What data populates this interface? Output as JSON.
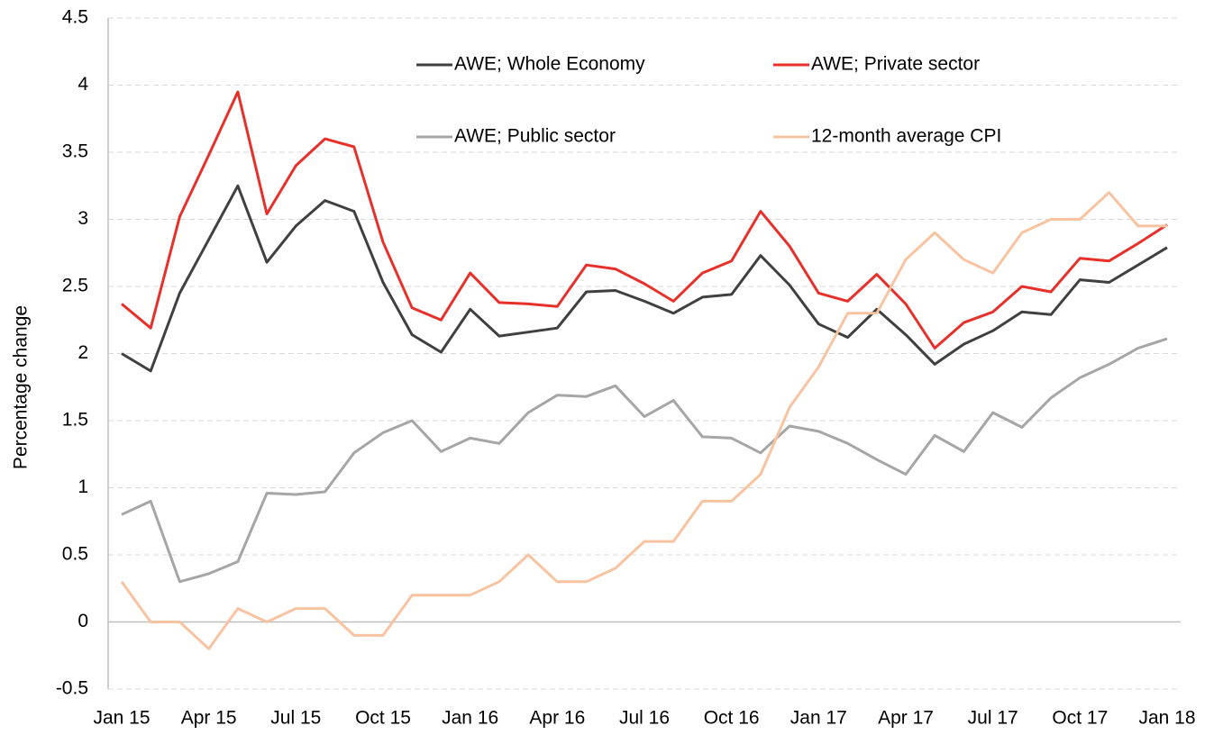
{
  "chart_data": {
    "type": "line",
    "ylabel": "Percentage change",
    "categories": [
      "Jan 15",
      null,
      null,
      "Apr 15",
      null,
      null,
      "Jul 15",
      null,
      null,
      "Oct 15",
      null,
      null,
      "Jan 16",
      null,
      null,
      "Apr 16",
      null,
      null,
      "Jul 16",
      null,
      null,
      "Oct 16",
      null,
      null,
      "Jan 17",
      null,
      null,
      "Apr 17",
      null,
      null,
      "Jul 17",
      null,
      null,
      "Oct 17",
      null,
      null,
      "Jan 18"
    ],
    "series": [
      {
        "name": "AWE; Whole Economy",
        "color": "#404040",
        "values": [
          2.0,
          1.87,
          2.45,
          2.85,
          3.25,
          2.68,
          2.95,
          3.14,
          3.06,
          2.53,
          2.14,
          2.01,
          2.33,
          2.13,
          2.16,
          2.19,
          2.46,
          2.47,
          2.39,
          2.3,
          2.42,
          2.44,
          2.73,
          2.51,
          2.22,
          2.12,
          2.33,
          2.14,
          1.92,
          2.07,
          2.17,
          2.31,
          2.29,
          2.55,
          2.53,
          2.66,
          2.79
        ]
      },
      {
        "name": "AWE; Private sector",
        "color": "#e8302a",
        "values": [
          2.37,
          2.19,
          3.02,
          3.48,
          3.95,
          3.04,
          3.4,
          3.6,
          3.54,
          2.83,
          2.34,
          2.25,
          2.6,
          2.38,
          2.37,
          2.35,
          2.66,
          2.63,
          2.52,
          2.39,
          2.6,
          2.69,
          3.06,
          2.8,
          2.45,
          2.39,
          2.59,
          2.37,
          2.04,
          2.23,
          2.31,
          2.5,
          2.46,
          2.71,
          2.69,
          2.82,
          2.96
        ]
      },
      {
        "name": "AWE; Public sector",
        "color": "#a6a6a6",
        "values": [
          0.8,
          0.9,
          0.3,
          0.36,
          0.45,
          0.96,
          0.95,
          0.97,
          1.26,
          1.41,
          1.5,
          1.27,
          1.37,
          1.33,
          1.56,
          1.69,
          1.68,
          1.76,
          1.53,
          1.65,
          1.38,
          1.37,
          1.26,
          1.46,
          1.42,
          1.33,
          1.21,
          1.1,
          1.39,
          1.27,
          1.56,
          1.45,
          1.67,
          1.82,
          1.92,
          2.04,
          2.11
        ]
      },
      {
        "name": "12-month average CPI",
        "color": "#f8c3a0",
        "values": [
          0.3,
          0,
          0,
          -0.2,
          0.1,
          0,
          0.1,
          0.1,
          -0.1,
          -0.1,
          0.2,
          0.2,
          0.2,
          0.3,
          0.5,
          0.3,
          0.3,
          0.4,
          0.6,
          0.6,
          0.9,
          0.9,
          1.1,
          1.6,
          1.9,
          2.3,
          2.3,
          2.7,
          2.9,
          2.7,
          2.6,
          2.9,
          3.0,
          3.0,
          3.2,
          2.95,
          2.95
        ]
      }
    ],
    "ylim": [
      -0.5,
      4.5
    ],
    "yticks": [
      -0.5,
      0,
      0.5,
      1,
      1.5,
      2,
      2.5,
      3,
      3.5,
      4,
      4.5
    ],
    "grid": true
  }
}
